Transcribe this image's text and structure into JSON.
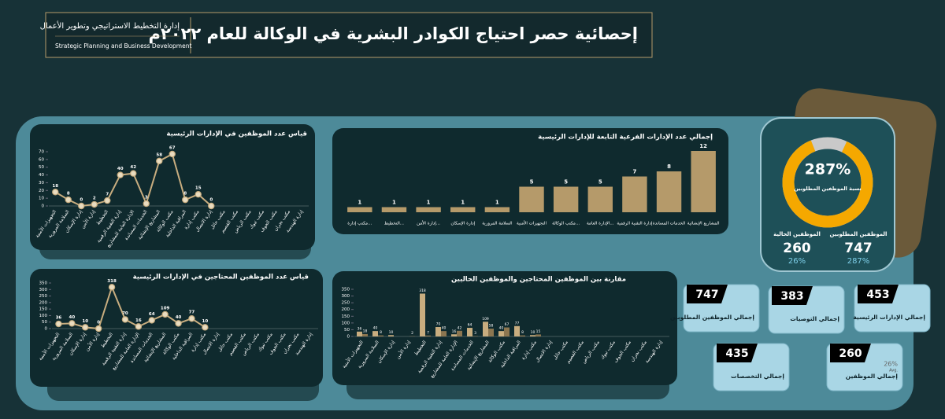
{
  "header": {
    "title": "إحصائية حصر احتياج الكوادر البشرية في الوكالة للعام ٢٠٢٢م",
    "org_ar": "إدارة التخطيط الاستراتيجي وتطوير الأعمال",
    "org_en": "Strategic Planning and Business Development"
  },
  "chart_data": [
    {
      "type": "line",
      "title": "قياس عدد الموظفين في الإدارات الرئيسية",
      "categories": [
        "التجهيزات الأمنية",
        "السلامة المرورية",
        "إدارة الإسكان",
        "إدارة الأمن",
        "التخطيط",
        "إدارة التقنية الرقمية",
        "الإدارة العامة للمشاريع",
        "الخدمات المساندة",
        "المشاريع الإنشائية",
        "مكتب الوكالة",
        "المراقبة الداخلية",
        "مكتب إدارة",
        "إدارة الاتصال",
        "مكتب حائل",
        "مكتب القصيم",
        "مكتب الرياض",
        "مكتب تبوك",
        "مكتب الجوف",
        "مكتب نجران",
        "إدارة الهندسة"
      ],
      "values": [
        18,
        8,
        0,
        2,
        7,
        40,
        42,
        3,
        58,
        67,
        8,
        15,
        0,
        null,
        null,
        null,
        null,
        null,
        null,
        null
      ],
      "color": "#c8ad7f",
      "ylim": [
        0,
        70
      ],
      "yticks": [
        0,
        10,
        20,
        30,
        40,
        50,
        60,
        70
      ]
    },
    {
      "type": "bar",
      "title": "إجمالي عدد الإدارات الفرعية التابعة للإدارات الرئيسية",
      "categories": [
        "مكتب إدارة...",
        "التخطيط...",
        "إدارة الأمن...",
        "إدارة الإسكان",
        "السلامة المرورية",
        "التجهيزات الأمنية",
        "مكتب الوكالة...",
        "الإدارة العامة...",
        "إدارة التقنية الرقمية",
        "الخدمات المساندة",
        "المشاريع الإنشائية"
      ],
      "values": [
        1,
        1,
        1,
        1,
        1,
        5,
        5,
        5,
        7,
        8,
        12
      ],
      "color": "#b59a6a"
    },
    {
      "type": "line",
      "title": "قياس عدد الموظفين المحتاجين  في الإدارات الرئيسية",
      "categories": [
        "التجهيزات الأمنية",
        "السلامة المرورية",
        "إدارة الإسكان",
        "إدارة الأمن",
        "التخطيط",
        "إدارة التقنية الرقمية",
        "الإدارة العامة للمشاريع",
        "الخدمات المساندة",
        "المشاريع الإنشائية",
        "مكتب الوكالة",
        "المراقبة الداخلية",
        "مكتب إدارة",
        "إدارة الاتصال",
        "مكتب حائل",
        "مكتب القصيم",
        "مكتب الرياض",
        "مكتب تبوك",
        "مكتب الجوف",
        "مكتب نجران",
        "إدارة الهندسة"
      ],
      "values": [
        36,
        40,
        10,
        0,
        318,
        70,
        16,
        64,
        109,
        40,
        77,
        10,
        null,
        null,
        null,
        null,
        null,
        null,
        null,
        null
      ],
      "color": "#c8ad7f",
      "ylim": [
        0,
        350
      ],
      "yticks": [
        0,
        50,
        100,
        150,
        200,
        250,
        300,
        350
      ]
    },
    {
      "type": "bar",
      "title": "مقارنة بين الموظفين المحتاجين والموظفين الحاليين",
      "categories": [
        "التجهيزات الأمنية",
        "السلامة المرورية",
        "إدارة الإسكان",
        "إدارة الأمن",
        "التخطيط",
        "إدارة التقنية الرقمية",
        "الإدارة العامة للمشاريع",
        "الخدمات المساندة",
        "المشاريع الإنشائية",
        "مكتب الوكالة",
        "المراقبة الداخلية",
        "مكتب إدارة",
        "إدارة الاتصال",
        "مكتب حائل",
        "مكتب القصيم",
        "مكتب الرياض",
        "مكتب تبوك",
        "مكتب الجوف",
        "مكتب نجران",
        "إدارة الهندسة"
      ],
      "series": [
        {
          "color": "#c8ad7f",
          "values": [
            36,
            40,
            10,
            0,
            318,
            70,
            16,
            64,
            109,
            40,
            77,
            10,
            0,
            0,
            0,
            0,
            0,
            0,
            0,
            0
          ]
        },
        {
          "color": "#8c7650",
          "values": [
            18,
            8,
            0,
            2,
            7,
            40,
            42,
            3,
            58,
            67,
            8,
            15,
            0,
            0,
            0,
            0,
            0,
            0,
            0,
            0
          ]
        }
      ],
      "ylim": [
        0,
        350
      ],
      "yticks": [
        0,
        50,
        100,
        150,
        200,
        250,
        300,
        350
      ]
    }
  ],
  "ratio": {
    "value_label": "287%",
    "label": "نسبة الموظفين المطلوبين",
    "required": {
      "label": "الموظفين المطلوبين",
      "value": 747,
      "share": "287%"
    },
    "current": {
      "label": "الموظفين الحالية",
      "value": 260,
      "share": "26%"
    }
  },
  "cards": [
    {
      "value": 747,
      "label": "إجمالي الموظفين المطلوبين"
    },
    {
      "value": 383,
      "label": "إجمالي التوصيات"
    },
    {
      "value": 453,
      "label": "إجمالي الإدارات الرئيسية"
    },
    {
      "value": 435,
      "label": "إجمالي التخصصات"
    },
    {
      "value": 260,
      "label": "إجمالي الموظفين",
      "share": "26%",
      "note": "Avg."
    }
  ]
}
